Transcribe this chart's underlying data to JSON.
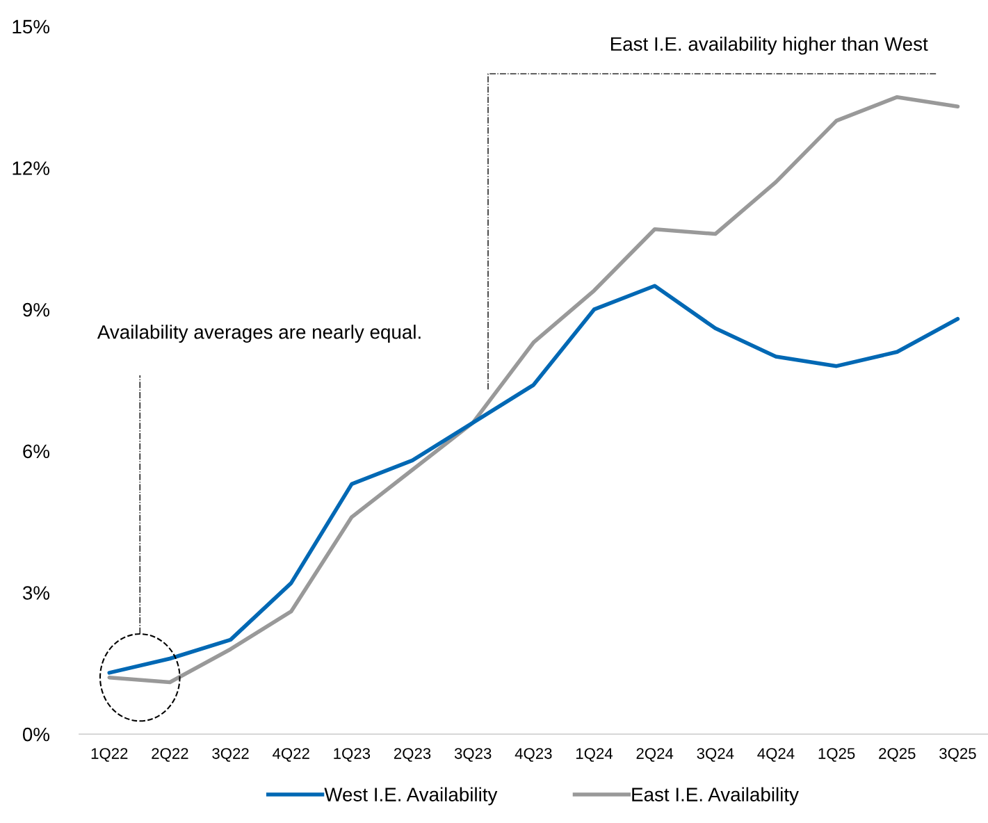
{
  "chart_data": {
    "type": "line",
    "categories": [
      "1Q22",
      "2Q22",
      "3Q22",
      "4Q22",
      "1Q23",
      "2Q23",
      "3Q23",
      "4Q23",
      "1Q24",
      "2Q24",
      "3Q24",
      "4Q24",
      "1Q25",
      "2Q25",
      "3Q25"
    ],
    "series": [
      {
        "name": "West I.E. Availability",
        "color": "#0068b4",
        "values": [
          1.3,
          1.6,
          2.0,
          3.2,
          5.3,
          5.8,
          6.6,
          7.4,
          9.0,
          9.5,
          8.6,
          8.0,
          7.8,
          8.1,
          8.8
        ]
      },
      {
        "name": "East I.E. Availability",
        "color": "#999999",
        "values": [
          1.2,
          1.1,
          1.8,
          2.6,
          4.6,
          5.6,
          6.6,
          8.3,
          9.4,
          10.7,
          10.6,
          11.7,
          13.0,
          13.5,
          13.3
        ]
      }
    ],
    "ylim": [
      0,
      15
    ],
    "yticks": [
      {
        "value": 0,
        "label": "0%"
      },
      {
        "value": 3,
        "label": "3%"
      },
      {
        "value": 6,
        "label": "6%"
      },
      {
        "value": 9,
        "label": "9%"
      },
      {
        "value": 12,
        "label": "12%"
      },
      {
        "value": 15,
        "label": "15%"
      }
    ],
    "annotations": [
      "Availability averages are nearly equal.",
      "East I.E. availability higher than West"
    ],
    "grid": false,
    "legend": "bottom",
    "marker": "none",
    "line_style": "solid"
  }
}
